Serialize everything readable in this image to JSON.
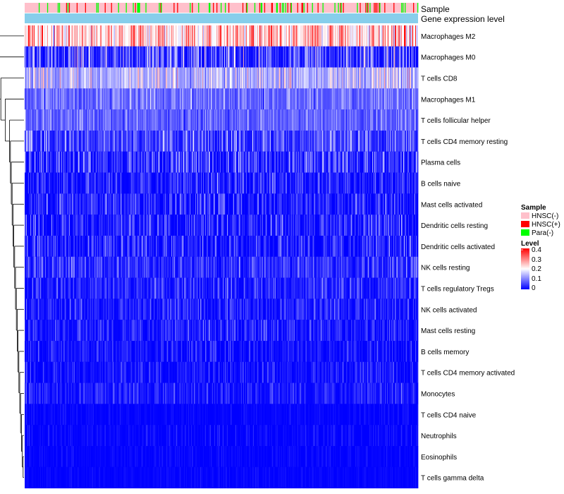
{
  "chart_data": {
    "type": "heatmap",
    "title": "",
    "annotation_tracks": [
      "Sample",
      "Gene expression level"
    ],
    "rows": [
      {
        "label": "Macrophages M2",
        "mean": 0.27,
        "spread": 0.13
      },
      {
        "label": "Macrophages M0",
        "mean": 0.09,
        "spread": 0.14
      },
      {
        "label": "T cells CD8",
        "mean": 0.17,
        "spread": 0.1
      },
      {
        "label": "Macrophages M1",
        "mean": 0.1,
        "spread": 0.07
      },
      {
        "label": "T cells follicular helper",
        "mean": 0.09,
        "spread": 0.06
      },
      {
        "label": "T cells CD4 memory resting",
        "mean": 0.08,
        "spread": 0.1
      },
      {
        "label": "Plasma cells",
        "mean": 0.06,
        "spread": 0.1
      },
      {
        "label": "B cells naive",
        "mean": 0.04,
        "spread": 0.07
      },
      {
        "label": "Mast cells activated",
        "mean": 0.045,
        "spread": 0.08
      },
      {
        "label": "Dendritic cells resting",
        "mean": 0.045,
        "spread": 0.08
      },
      {
        "label": "Dendritic cells activated",
        "mean": 0.04,
        "spread": 0.08
      },
      {
        "label": "NK cells resting",
        "mean": 0.05,
        "spread": 0.07
      },
      {
        "label": "T cells regulatory  Tregs",
        "mean": 0.045,
        "spread": 0.07
      },
      {
        "label": "NK cells activated",
        "mean": 0.035,
        "spread": 0.06
      },
      {
        "label": "Mast cells resting",
        "mean": 0.035,
        "spread": 0.06
      },
      {
        "label": "B cells memory",
        "mean": 0.025,
        "spread": 0.05
      },
      {
        "label": "T cells CD4 memory activated",
        "mean": 0.025,
        "spread": 0.05
      },
      {
        "label": "Monocytes",
        "mean": 0.03,
        "spread": 0.05
      },
      {
        "label": "T cells CD4 naive",
        "mean": 0.005,
        "spread": 0.02
      },
      {
        "label": "Neutrophils",
        "mean": 0.01,
        "spread": 0.03
      },
      {
        "label": "Eosinophils",
        "mean": 0.005,
        "spread": 0.02
      },
      {
        "label": "T cells gamma delta",
        "mean": 0.005,
        "spread": 0.015
      }
    ],
    "n_samples": 560,
    "sample_mix": {
      "HNSC(-)": 0.84,
      "HNSC(+)": 0.08,
      "Para(-)": 0.08
    },
    "legend": {
      "sample": {
        "title": "Sample",
        "items": [
          {
            "label": "HNSC(-)",
            "color": "#FFC0CB"
          },
          {
            "label": "HNSC(+)",
            "color": "#FF0000"
          },
          {
            "label": "Para(-)",
            "color": "#00FF00"
          }
        ]
      },
      "level": {
        "title": "Level",
        "ticks": [
          "0.4",
          "0.3",
          "0.2",
          "0.1",
          "0"
        ],
        "range": [
          0,
          0.4
        ],
        "colors": [
          "#0000FF",
          "#FFFFFF",
          "#FF0000"
        ]
      }
    },
    "gene_track_color": "#87CEEB"
  }
}
